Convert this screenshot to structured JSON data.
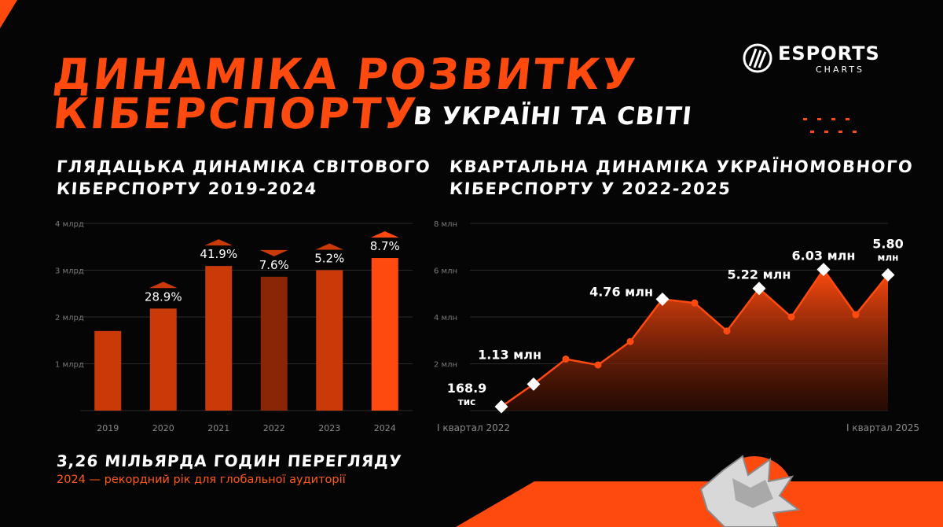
{
  "header": {
    "title_line1": "ДИНАМІКА РОЗВИТКУ",
    "title_line2": "КІБЕРСПОРТУ",
    "title_sub": "В УКРАЇНІ ТА СВІТІ"
  },
  "logo": {
    "name": "ESPORTS",
    "sub": "CHARTS",
    "icon": "esports-charts-logo-icon"
  },
  "colors": {
    "accent": "#ff4a0f",
    "bar": "#c93a08",
    "bar_dark": "#8a2606",
    "bar_bright": "#ff4a0f",
    "background": "#050505"
  },
  "left_section": {
    "title_line1": "ГЛЯДАЦЬКА ДИНАМІКА СВІТОВОГО",
    "title_line2": "КІБЕРСПОРТУ 2019-2024"
  },
  "right_section": {
    "title_line1": "КВАРТАЛЬНА ДИНАМІКА УКРАЇНОМОВНОГО",
    "title_line2": "КІБЕРСПОРТУ У 2022-2025"
  },
  "stats": {
    "headline": "3,26 МІЛЬЯРДА ГОДИН ПЕРЕГЛЯДУ",
    "subline": "2024 — рекордний рік для глобальної аудиторії"
  },
  "chart_data": [
    {
      "type": "bar",
      "title": "ГЛЯДАЦЬКА ДИНАМІКА СВІТОВОГО КІБЕРСПОРТУ 2019-2024",
      "categories": [
        "2019",
        "2020",
        "2021",
        "2022",
        "2023",
        "2024"
      ],
      "values": [
        1.7,
        2.18,
        3.09,
        2.86,
        3.0,
        3.26
      ],
      "labels": [
        "",
        "28.9%",
        "41.9%",
        "7.6%",
        "5.2%",
        "8.7%"
      ],
      "change_direction": [
        "",
        "up",
        "up",
        "down",
        "up",
        "up"
      ],
      "bar_colors": [
        "#c93a08",
        "#c93a08",
        "#c93a08",
        "#8a2606",
        "#c93a08",
        "#ff4a0f"
      ],
      "ylim": [
        0,
        4
      ],
      "yticks": [
        1,
        2,
        3,
        4
      ],
      "ytick_labels": [
        "1 млрд",
        "2 млрд",
        "3 млрд",
        "4 млрд"
      ],
      "grid": true
    },
    {
      "type": "area",
      "title": "КВАРТАЛЬНА ДИНАМІКА УКРАЇНОМОВНОГО КІБЕРСПОРТУ У 2022-2025",
      "x": [
        "I квартал 2022",
        "",
        "",
        "",
        "",
        "",
        "",
        "",
        "",
        "",
        "",
        "",
        "I квартал 2025"
      ],
      "values": [
        0.1689,
        1.13,
        2.2,
        1.95,
        2.95,
        4.76,
        4.6,
        3.4,
        5.22,
        4.0,
        6.03,
        4.1,
        5.8
      ],
      "markers": [
        0,
        1,
        5,
        8,
        10,
        12
      ],
      "point_labels": [
        {
          "index": 0,
          "text": "168.9",
          "text2": "тис"
        },
        {
          "index": 1,
          "text": "1.13 млн",
          "text2": ""
        },
        {
          "index": 5,
          "text": "4.76 млн",
          "text2": ""
        },
        {
          "index": 8,
          "text": "5.22 млн",
          "text2": ""
        },
        {
          "index": 10,
          "text": "6.03 млн",
          "text2": ""
        },
        {
          "index": 12,
          "text": "5.80",
          "text2": "млн"
        }
      ],
      "x_tick_labels": [
        "I квартал 2022",
        "I квартал 2025"
      ],
      "ylim": [
        0,
        8
      ],
      "yticks": [
        2,
        4,
        6,
        8
      ],
      "ytick_labels": [
        "2 млн",
        "4 млн",
        "6 млн",
        "8 млн"
      ],
      "grid": true
    }
  ]
}
